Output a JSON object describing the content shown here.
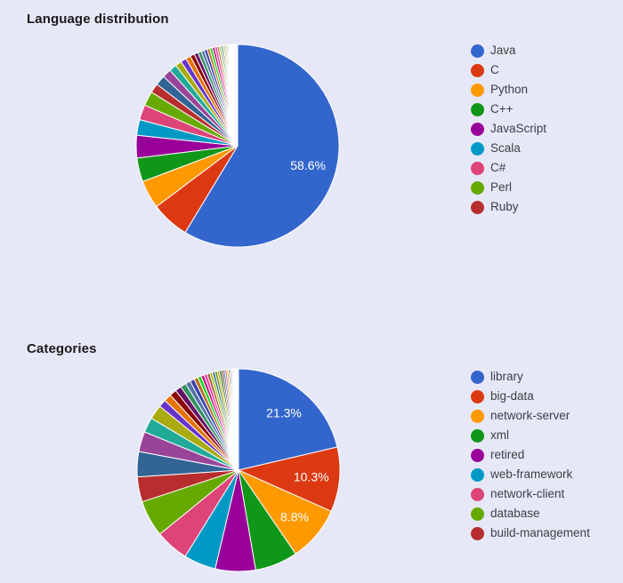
{
  "colors": {
    "background": "#e7e8f7",
    "title_text": "#1a1a1a",
    "legend_text": "#3c4043",
    "slice_label_text": "#ffffff",
    "slice_border": "#ffffff"
  },
  "palette": [
    "#3366cc",
    "#dc3912",
    "#ff9900",
    "#109618",
    "#990099",
    "#0099c6",
    "#dd4477",
    "#66aa00",
    "#b82e2e",
    "#316395",
    "#994499",
    "#22aa99",
    "#aaaa11",
    "#6633cc",
    "#e67300",
    "#8b0707",
    "#651067",
    "#329262",
    "#5574a6",
    "#3b3eac",
    "#b77322",
    "#16d620",
    "#b91383",
    "#f4359e",
    "#9c5935",
    "#a9c413",
    "#2a778d",
    "#668d1c",
    "#bea413",
    "#0c5922",
    "#743411"
  ],
  "chart_data": [
    {
      "type": "pie",
      "title": "Language distribution",
      "legend_position": "right",
      "value_format": "percent",
      "start_angle_deg": 0,
      "slices": [
        {
          "name": "Java",
          "value": 58.6,
          "label": "58.6%"
        },
        {
          "name": "C",
          "value": 6.1,
          "label": null
        },
        {
          "name": "Python",
          "value": 4.5,
          "label": null
        },
        {
          "name": "C++",
          "value": 3.8,
          "label": null
        },
        {
          "name": "JavaScript",
          "value": 3.6,
          "label": null
        },
        {
          "name": "Scala",
          "value": 2.5,
          "label": null
        },
        {
          "name": "C#",
          "value": 2.4,
          "label": null
        },
        {
          "name": "Perl",
          "value": 2.3,
          "label": null
        },
        {
          "name": "Ruby",
          "value": 1.5,
          "label": null
        }
      ],
      "other_values": [
        1.6,
        1.4,
        1.2,
        1.0,
        0.9,
        0.8,
        0.7,
        0.62,
        0.55,
        0.5,
        0.47,
        0.44,
        0.42,
        0.4,
        0.38,
        0.29,
        0.27,
        0.25,
        0.23,
        0.21,
        0.19,
        0.18,
        0.16,
        0.15,
        0.14,
        0.13,
        0.12,
        0.11,
        0.1,
        0.09,
        0.08,
        0.08,
        0.07,
        0.07,
        0.06,
        0.06,
        0.05,
        0.05,
        0.05,
        0.05
      ]
    },
    {
      "type": "pie",
      "title": "Categories",
      "legend_position": "right",
      "value_format": "percent",
      "start_angle_deg": 0,
      "slices": [
        {
          "name": "library",
          "value": 21.3,
          "label": "21.3%"
        },
        {
          "name": "big-data",
          "value": 10.3,
          "label": "10.3%"
        },
        {
          "name": "network-server",
          "value": 8.8,
          "label": "8.8%"
        },
        {
          "name": "xml",
          "value": 6.8,
          "label": null
        },
        {
          "name": "retired",
          "value": 6.4,
          "label": null
        },
        {
          "name": "web-framework",
          "value": 5.1,
          "label": null
        },
        {
          "name": "network-client",
          "value": 5.3,
          "label": null
        },
        {
          "name": "database",
          "value": 5.8,
          "label": null
        },
        {
          "name": "build-management",
          "value": 4.0,
          "label": null
        }
      ],
      "other_values": [
        4.0,
        3.2,
        2.4,
        2.3,
        1.2,
        1.2,
        1.1,
        1.0,
        0.9,
        0.8,
        0.7,
        0.65,
        0.55,
        0.5,
        0.48,
        0.45,
        0.42,
        0.4,
        0.38,
        0.35,
        0.32,
        0.3,
        0.28,
        0.26,
        0.24,
        0.22,
        0.2,
        0.18,
        0.16,
        0.14,
        0.12,
        0.11,
        0.1,
        0.09,
        0.08,
        0.07,
        0.06,
        0.05,
        0.05
      ]
    }
  ]
}
